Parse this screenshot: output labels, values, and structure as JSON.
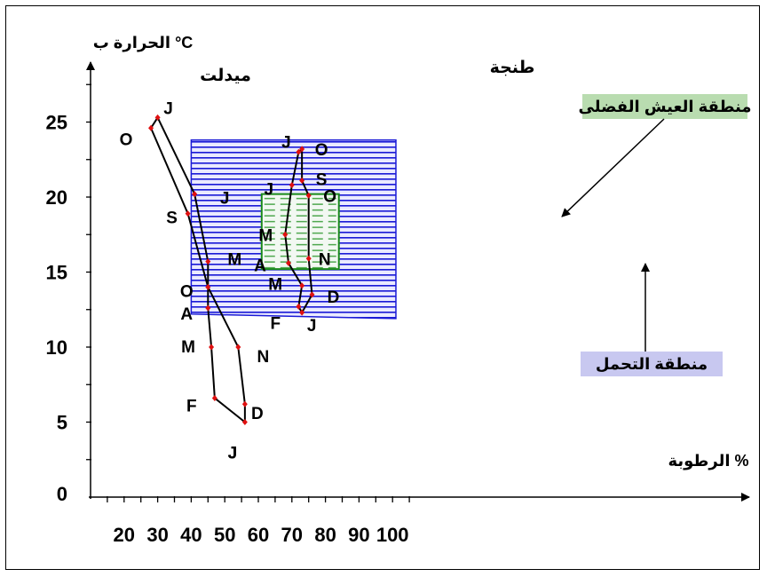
{
  "chart_data": {
    "type": "line",
    "title": "",
    "ylabel": "الحرارة ب °C",
    "xlabel": "الرطوبة %",
    "y_ticks": [
      "0",
      "5",
      "10",
      "15",
      "20",
      "25"
    ],
    "x_ticks": [
      "20",
      "30",
      "40",
      "50",
      "60",
      "70",
      "80",
      "90",
      "100"
    ],
    "xlim": [
      10,
      108
    ],
    "ylim": [
      0,
      28
    ],
    "grid": false,
    "colors": {
      "tolerance_fill": "#1a1ad6",
      "tolerance_bg": "#eaeaff",
      "comfort_border": "#1a8a1a",
      "comfort_fill": "#f2f8f2",
      "comfort_dash": "#4fa84f",
      "tolerance_label_bg": "#c8c8f0",
      "comfort_label_bg": "#b9dcb0",
      "line": "#000000",
      "marker": "#e01010"
    },
    "zones": {
      "tolerance": {
        "label": "منطقة التحمل",
        "corners": [
          [
            40,
            23.8
          ],
          [
            101,
            23.8
          ],
          [
            101,
            11.9
          ],
          [
            40,
            12.2
          ]
        ]
      },
      "comfort": {
        "label": "منطقة العيش الفضلى",
        "x_range": [
          61,
          84
        ],
        "y_range": [
          15.2,
          20.2
        ]
      }
    },
    "series": [
      {
        "name": "ميدلت",
        "points": [
          {
            "label": "J",
            "x": 56,
            "y": 5.0
          },
          {
            "label": "F",
            "x": 47,
            "y": 6.6
          },
          {
            "label": "M",
            "x": 46,
            "y": 10.0
          },
          {
            "label": "A",
            "x": 45,
            "y": 12.6
          },
          {
            "label": "M",
            "x": 45,
            "y": 15.7
          },
          {
            "label": "J",
            "x": 41,
            "y": 20.2
          },
          {
            "label": "J",
            "x": 30,
            "y": 25.3
          },
          {
            "label": "O",
            "x": 28,
            "y": 24.6
          },
          {
            "label": "S",
            "x": 39,
            "y": 18.9
          },
          {
            "label": "O",
            "x": 45,
            "y": 14.0
          },
          {
            "label": "N",
            "x": 54,
            "y": 10.0
          },
          {
            "label": "D",
            "x": 56,
            "y": 6.2
          },
          {
            "label": "J",
            "x": 56,
            "y": 5.0
          }
        ]
      },
      {
        "name": "طنجة",
        "points": [
          {
            "label": "J",
            "x": 73,
            "y": 12.3
          },
          {
            "label": "F",
            "x": 72,
            "y": 12.7
          },
          {
            "label": "M",
            "x": 73,
            "y": 14.1
          },
          {
            "label": "A",
            "x": 69,
            "y": 15.6
          },
          {
            "label": "M",
            "x": 68,
            "y": 17.5
          },
          {
            "label": "J",
            "x": 70,
            "y": 20.8
          },
          {
            "label": "J",
            "x": 72,
            "y": 23.0
          },
          {
            "label": "O",
            "x": 73,
            "y": 23.2
          },
          {
            "label": "S",
            "x": 73,
            "y": 21.1
          },
          {
            "label": "O",
            "x": 75,
            "y": 20.1
          },
          {
            "label": "N",
            "x": 75,
            "y": 15.9
          },
          {
            "label": "D",
            "x": 76,
            "y": 13.5
          },
          {
            "label": "J",
            "x": 73,
            "y": 12.3
          }
        ]
      }
    ]
  }
}
